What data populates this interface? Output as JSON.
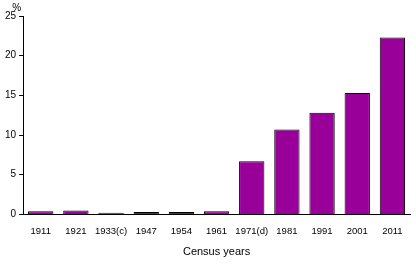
{
  "chart_data": {
    "type": "bar",
    "x_label": "Census years",
    "y_label": "%",
    "categories": [
      "1911",
      "1921",
      "1933(c)",
      "1947",
      "1954",
      "1961",
      "1971(d)",
      "1981",
      "1991",
      "2001",
      "2011"
    ],
    "values": [
      0.4,
      0.5,
      0.2,
      0.3,
      0.3,
      0.4,
      6.7,
      10.7,
      12.8,
      15.3,
      22.3
    ],
    "color": "#990099",
    "ylim": [
      0,
      25
    ],
    "yticks": [
      0,
      5,
      10,
      15,
      20,
      25
    ],
    "grid": true
  }
}
